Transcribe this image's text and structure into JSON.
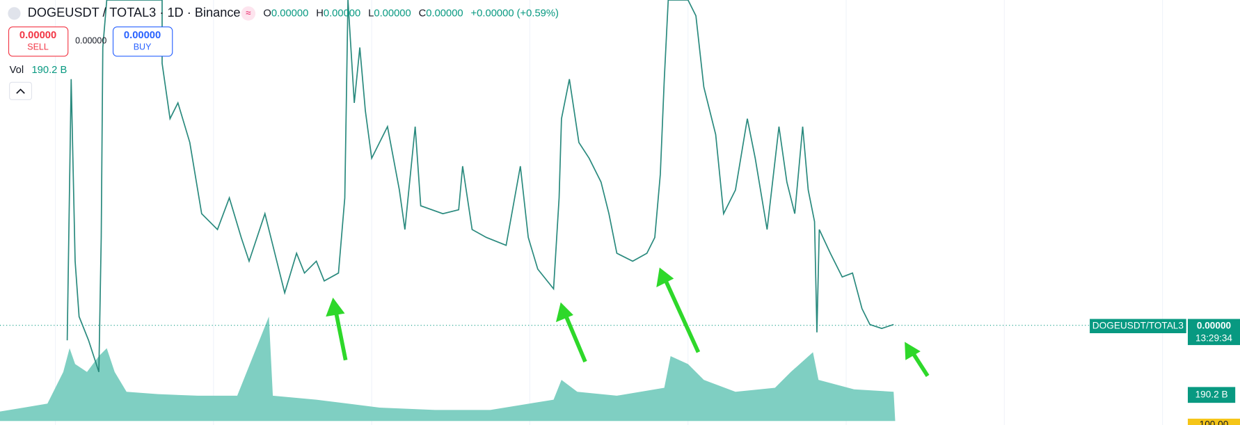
{
  "header": {
    "symbol": "DOGEUSDT / TOTAL3 · 1D · Binance",
    "open_label": "O",
    "open": "0.00000",
    "high_label": "H",
    "high": "0.00000",
    "low_label": "L",
    "low": "0.00000",
    "close_label": "C",
    "close": "0.00000",
    "change": "+0.00000 (+0.59%)"
  },
  "trade": {
    "sell_price": "0.00000",
    "sell_label": "SELL",
    "spread": "0.00000",
    "buy_price": "0.00000",
    "buy_label": "BUY"
  },
  "volume": {
    "label": "Vol",
    "value": "190.2 B"
  },
  "price_scale": {
    "symbol_label": "DOGEUSDT/TOTAL3",
    "last_price": "0.00000",
    "countdown": "13:29:34",
    "volume_label": "190.2 B",
    "bottom_label": "100.00"
  }
}
